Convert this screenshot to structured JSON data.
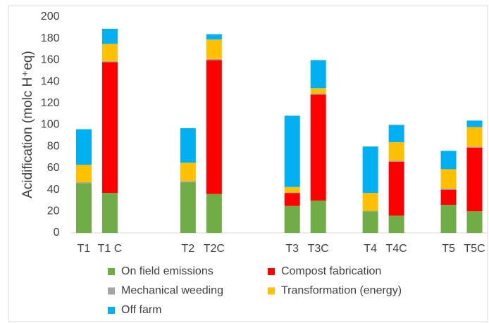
{
  "chart_data": {
    "type": "bar",
    "stacked": true,
    "y_label": "Acidification (molc H⁺eq)",
    "categories": [
      "T1",
      "T1 C",
      null,
      null,
      "T2",
      "T2C",
      null,
      null,
      "T3",
      "T3C",
      null,
      "T4",
      "T4C",
      null,
      "T5",
      "T5C"
    ],
    "ylim": [
      0,
      200
    ],
    "yticks": [
      0,
      20,
      40,
      60,
      80,
      100,
      120,
      140,
      160,
      180,
      200
    ],
    "grid": false,
    "legend": "bottom",
    "series": [
      {
        "name": "On field emissions",
        "color": "#70ad47",
        "values": [
          46,
          37,
          null,
          null,
          47,
          36,
          null,
          null,
          25,
          30,
          null,
          20,
          16,
          null,
          26,
          20
        ]
      },
      {
        "name": "Compost fabrication",
        "color": "#ff0000",
        "values": [
          0,
          121,
          null,
          null,
          0,
          124,
          null,
          null,
          12,
          98,
          null,
          0,
          50,
          null,
          14,
          59
        ]
      },
      {
        "name": "Mechanical weeding",
        "color": "#a5a5a5",
        "values": [
          1,
          1,
          null,
          null,
          1,
          1,
          null,
          null,
          0.5,
          1,
          null,
          0.5,
          1,
          null,
          1,
          1
        ]
      },
      {
        "name": "Transformation (energy)",
        "color": "#ffc000",
        "values": [
          16,
          16,
          null,
          null,
          17,
          18,
          null,
          null,
          5,
          5,
          null,
          16.5,
          17,
          null,
          18,
          18
        ]
      },
      {
        "name": "Off farm",
        "color": "#00b0f0",
        "values": [
          33,
          14,
          null,
          null,
          32,
          5,
          null,
          null,
          66,
          26,
          null,
          43,
          16,
          null,
          17,
          6
        ]
      }
    ]
  }
}
